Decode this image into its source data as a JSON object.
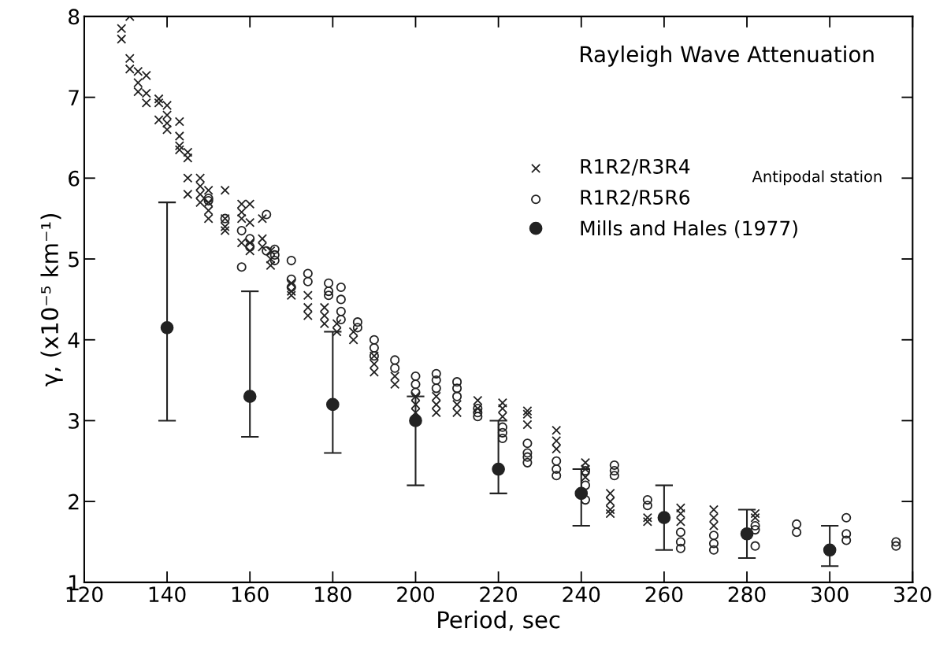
{
  "chart_data": {
    "type": "scatter",
    "title": "Rayleigh Wave Attenuation",
    "xlabel": "Period, sec",
    "ylabel": "γ, (x10⁻⁵ km⁻¹)",
    "xlim": [
      120,
      320
    ],
    "xticks": [
      120,
      140,
      160,
      180,
      200,
      220,
      240,
      260,
      280,
      300,
      320
    ],
    "ylim": [
      1,
      8
    ],
    "yticks": [
      1,
      2,
      3,
      4,
      5,
      6,
      7,
      8
    ],
    "grid": false,
    "legend": "right",
    "annotations": [
      "Antipodal station"
    ],
    "series": [
      {
        "name": "R1R2/R3R4",
        "color": "#222222",
        "marker": "cross",
        "x": [
          129,
          129,
          131,
          131,
          131,
          133,
          133,
          133,
          135,
          135,
          135,
          138,
          138,
          138,
          140,
          140,
          140,
          140,
          143,
          143,
          143,
          143,
          145,
          145,
          145,
          145,
          148,
          148,
          148,
          148,
          150,
          150,
          150,
          150,
          154,
          154,
          154,
          154,
          158,
          158,
          158,
          158,
          160,
          160,
          160,
          160,
          163,
          163,
          163,
          165,
          165,
          165,
          170,
          170,
          170,
          174,
          174,
          174,
          178,
          178,
          178,
          181,
          181,
          185,
          185,
          190,
          190,
          190,
          195,
          195,
          200,
          200,
          200,
          205,
          205,
          205,
          210,
          210,
          215,
          215,
          221,
          221,
          221,
          227,
          227,
          227,
          234,
          234,
          234,
          241,
          241,
          241,
          247,
          247,
          247,
          247,
          256,
          256,
          264,
          264,
          264,
          272,
          272,
          272,
          282,
          282
        ],
        "values": [
          7.85,
          7.72,
          8.0,
          7.48,
          7.35,
          7.32,
          7.18,
          7.07,
          7.27,
          7.05,
          6.93,
          6.98,
          6.93,
          6.72,
          6.9,
          6.78,
          6.68,
          6.6,
          6.7,
          6.52,
          6.4,
          6.35,
          6.32,
          6.25,
          6.0,
          5.8,
          6.0,
          5.9,
          5.8,
          5.7,
          5.85,
          5.7,
          5.6,
          5.5,
          5.85,
          5.5,
          5.4,
          5.35,
          5.68,
          5.58,
          5.5,
          5.2,
          5.68,
          5.45,
          5.2,
          5.1,
          5.5,
          5.25,
          5.15,
          5.1,
          5.0,
          4.92,
          4.7,
          4.6,
          4.55,
          4.55,
          4.4,
          4.3,
          4.4,
          4.3,
          4.2,
          4.2,
          4.1,
          4.1,
          4.0,
          3.8,
          3.7,
          3.6,
          3.55,
          3.45,
          3.3,
          3.2,
          3.1,
          3.3,
          3.2,
          3.1,
          3.2,
          3.1,
          3.25,
          3.15,
          3.22,
          3.15,
          3.05,
          3.12,
          3.08,
          2.95,
          2.88,
          2.75,
          2.65,
          2.48,
          2.4,
          2.3,
          2.1,
          2.0,
          1.9,
          1.85,
          1.8,
          1.75,
          1.92,
          1.85,
          1.75,
          1.9,
          1.8,
          1.7,
          1.85,
          1.8
        ]
      },
      {
        "name": "R1R2/R5R6",
        "color": "#222222",
        "marker": "circle",
        "x": [
          150,
          150,
          154,
          158,
          158,
          160,
          160,
          164,
          164,
          166,
          166,
          166,
          170,
          170,
          170,
          174,
          174,
          179,
          179,
          179,
          182,
          182,
          182,
          182,
          186,
          186,
          190,
          190,
          190,
          195,
          195,
          200,
          200,
          200,
          205,
          205,
          205,
          210,
          210,
          210,
          215,
          215,
          215,
          221,
          221,
          221,
          227,
          227,
          227,
          227,
          234,
          234,
          234,
          241,
          241,
          241,
          248,
          248,
          248,
          256,
          256,
          264,
          264,
          264,
          272,
          272,
          272,
          282,
          282,
          282,
          292,
          292,
          304,
          304,
          304,
          316,
          316
        ],
        "values": [
          5.75,
          5.72,
          5.5,
          5.35,
          4.9,
          5.25,
          5.15,
          5.55,
          5.1,
          5.12,
          5.05,
          4.98,
          4.98,
          4.75,
          4.65,
          4.82,
          4.72,
          4.7,
          4.6,
          4.55,
          4.65,
          4.5,
          4.35,
          4.25,
          4.22,
          4.15,
          4.0,
          3.9,
          3.8,
          3.75,
          3.65,
          3.55,
          3.45,
          3.35,
          3.58,
          3.5,
          3.4,
          3.48,
          3.4,
          3.3,
          3.15,
          3.1,
          3.05,
          2.92,
          2.85,
          2.78,
          2.72,
          2.6,
          2.55,
          2.48,
          2.5,
          2.4,
          2.32,
          2.38,
          2.2,
          2.02,
          2.45,
          2.38,
          2.32,
          2.02,
          1.95,
          1.62,
          1.5,
          1.42,
          1.58,
          1.48,
          1.4,
          1.7,
          1.65,
          1.45,
          1.72,
          1.62,
          1.8,
          1.6,
          1.52,
          1.5,
          1.45
        ]
      },
      {
        "name": "Mills and Hales (1977)",
        "color": "#222222",
        "marker": "circle",
        "x": [
          140,
          160,
          180,
          200,
          220,
          240,
          260,
          280,
          300
        ],
        "values": [
          4.15,
          3.3,
          3.2,
          3.0,
          2.4,
          2.1,
          1.8,
          1.6,
          1.4
        ],
        "errors": [
          [
            3.0,
            5.7
          ],
          [
            2.8,
            4.6
          ],
          [
            2.6,
            4.1
          ],
          [
            2.2,
            3.3
          ],
          [
            2.1,
            3.0
          ],
          [
            1.7,
            2.4
          ],
          [
            1.4,
            2.2
          ],
          [
            1.3,
            1.9
          ],
          [
            1.2,
            1.7
          ]
        ]
      }
    ]
  }
}
